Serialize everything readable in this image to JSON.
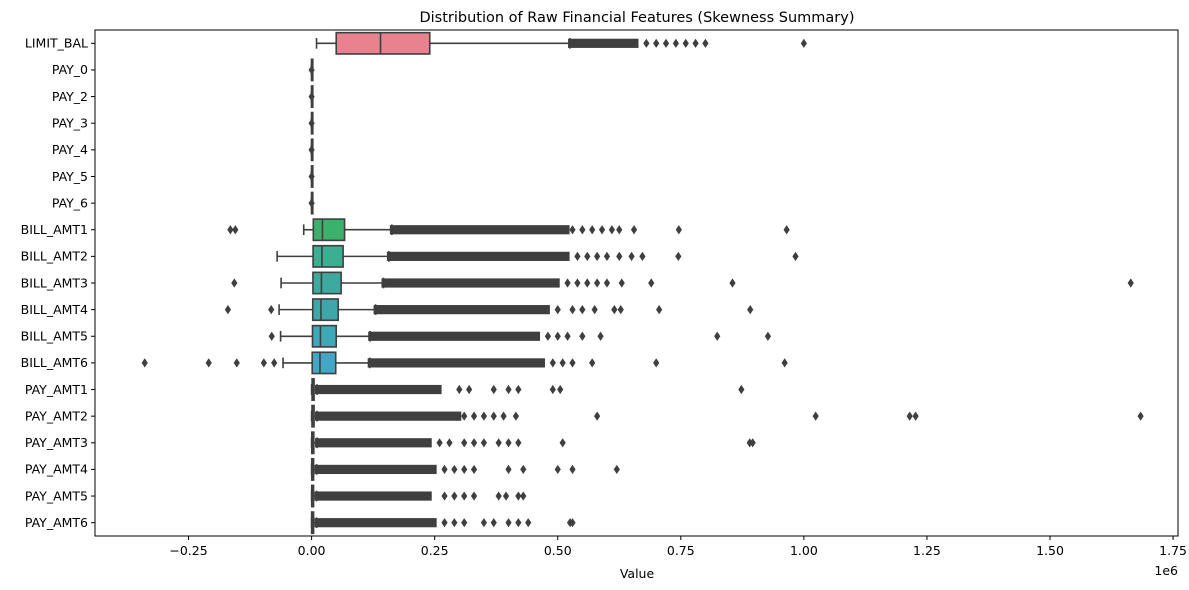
{
  "chart_data": {
    "type": "boxplot",
    "orientation": "horizontal",
    "title": "Distribution of Raw Financial Features (Skewness Summary)",
    "xlabel": "Value",
    "ylabel": "",
    "offset_label": "1e6",
    "xlim": [
      -0.44,
      1.76
    ],
    "xticks": [
      -0.25,
      0.0,
      0.25,
      0.5,
      0.75,
      1.0,
      1.25,
      1.5,
      1.75
    ],
    "xtick_labels": [
      "−0.25",
      "0.00",
      "0.25",
      "0.50",
      "0.75",
      "1.00",
      "1.25",
      "1.50",
      "1.75"
    ],
    "grid": false,
    "legend": false,
    "box_edge_color": "#3f3f3f",
    "categories": [
      "LIMIT_BAL",
      "PAY_0",
      "PAY_2",
      "PAY_3",
      "PAY_4",
      "PAY_5",
      "PAY_6",
      "BILL_AMT1",
      "BILL_AMT2",
      "BILL_AMT3",
      "BILL_AMT4",
      "BILL_AMT5",
      "BILL_AMT6",
      "PAY_AMT1",
      "PAY_AMT2",
      "PAY_AMT3",
      "PAY_AMT4",
      "PAY_AMT5",
      "PAY_AMT6"
    ],
    "series": [
      {
        "name": "LIMIT_BAL",
        "color": "#e8828f",
        "wlo": 0.01,
        "q1": 0.05,
        "med": 0.14,
        "q3": 0.24,
        "whi": 0.525,
        "dense": [
          0.525,
          0.66
        ],
        "outliers": [
          0.68,
          0.7,
          0.72,
          0.74,
          0.76,
          0.78,
          0.8,
          1.0
        ]
      },
      {
        "name": "PAY_0",
        "color": "#dc8c5a",
        "wlo": -2e-06,
        "q1": -1e-06,
        "med": 0.0,
        "q3": 0.0,
        "whi": 2e-06,
        "dense": [
          -8e-06,
          8e-06
        ],
        "outliers": []
      },
      {
        "name": "PAY_2",
        "color": "#c29a3c",
        "wlo": -2e-06,
        "q1": -1e-06,
        "med": 0.0,
        "q3": 0.0,
        "whi": 2e-06,
        "dense": [
          -8e-06,
          8e-06
        ],
        "outliers": []
      },
      {
        "name": "PAY_3",
        "color": "#a9a23a",
        "wlo": -2e-06,
        "q1": -1e-06,
        "med": 0.0,
        "q3": 0.0,
        "whi": 2e-06,
        "dense": [
          -8e-06,
          8e-06
        ],
        "outliers": []
      },
      {
        "name": "PAY_4",
        "color": "#8ea93a",
        "wlo": -2e-06,
        "q1": -1e-06,
        "med": 0.0,
        "q3": 0.0,
        "whi": 2e-06,
        "dense": [
          -8e-06,
          8e-06
        ],
        "outliers": []
      },
      {
        "name": "PAY_5",
        "color": "#5faf3e",
        "wlo": -2e-06,
        "q1": -1e-06,
        "med": 0.0,
        "q3": 0.0,
        "whi": 2e-06,
        "dense": [
          -8e-06,
          8e-06
        ],
        "outliers": []
      },
      {
        "name": "PAY_6",
        "color": "#38ae62",
        "wlo": -2e-06,
        "q1": -1e-06,
        "med": 0.0,
        "q3": 0.0,
        "whi": 2e-06,
        "dense": [
          -8e-06,
          8e-06
        ],
        "outliers": []
      },
      {
        "name": "BILL_AMT1",
        "color": "#3bb26c",
        "wlo": -0.016,
        "q1": 0.0035,
        "med": 0.022,
        "q3": 0.067,
        "whi": 0.163,
        "dense": [
          0.163,
          0.52
        ],
        "outliers": [
          -0.165,
          -0.155,
          0.53,
          0.55,
          0.57,
          0.59,
          0.61,
          0.625,
          0.655,
          0.746,
          0.965
        ]
      },
      {
        "name": "BILL_AMT2",
        "color": "#3cae92",
        "wlo": -0.07,
        "q1": 0.003,
        "med": 0.021,
        "q3": 0.064,
        "whi": 0.157,
        "dense": [
          0.157,
          0.52
        ],
        "outliers": [
          0.54,
          0.56,
          0.58,
          0.6,
          0.625,
          0.65,
          0.672,
          0.745,
          0.983
        ]
      },
      {
        "name": "BILL_AMT3",
        "color": "#3cab9e",
        "wlo": -0.062,
        "q1": 0.0027,
        "med": 0.02,
        "q3": 0.06,
        "whi": 0.146,
        "dense": [
          0.146,
          0.5
        ],
        "outliers": [
          -0.157,
          0.52,
          0.54,
          0.56,
          0.58,
          0.6,
          0.63,
          0.69,
          0.855,
          1.664
        ]
      },
      {
        "name": "BILL_AMT4",
        "color": "#3da8aa",
        "wlo": -0.066,
        "q1": 0.0023,
        "med": 0.019,
        "q3": 0.054,
        "whi": 0.13,
        "dense": [
          0.13,
          0.48
        ],
        "outliers": [
          -0.17,
          -0.082,
          0.5,
          0.53,
          0.55,
          0.575,
          0.615,
          0.628,
          0.706,
          0.891
        ]
      },
      {
        "name": "BILL_AMT5",
        "color": "#3ea8b6",
        "wlo": -0.063,
        "q1": 0.0018,
        "med": 0.018,
        "q3": 0.05,
        "whi": 0.119,
        "dense": [
          0.119,
          0.46
        ],
        "outliers": [
          -0.081,
          0.48,
          0.5,
          0.52,
          0.55,
          0.587,
          0.824,
          0.927
        ]
      },
      {
        "name": "BILL_AMT6",
        "color": "#42a6c4",
        "wlo": -0.058,
        "q1": 0.0012,
        "med": 0.017,
        "q3": 0.049,
        "whi": 0.118,
        "dense": [
          0.118,
          0.47
        ],
        "outliers": [
          -0.339,
          -0.209,
          -0.152,
          -0.097,
          -0.076,
          0.49,
          0.51,
          0.53,
          0.57,
          0.7,
          0.961
        ]
      },
      {
        "name": "PAY_AMT1",
        "color": "#4c9ed6",
        "wlo": 0.0,
        "q1": 0.001,
        "med": 0.0021,
        "q3": 0.005,
        "whi": 0.011,
        "dense": [
          0.011,
          0.26
        ],
        "outliers": [
          0.3,
          0.32,
          0.37,
          0.4,
          0.42,
          0.49,
          0.505,
          0.873
        ]
      },
      {
        "name": "PAY_AMT2",
        "color": "#7a8fe0",
        "wlo": 0.0,
        "q1": 0.0008,
        "med": 0.002,
        "q3": 0.005,
        "whi": 0.011,
        "dense": [
          0.011,
          0.3
        ],
        "outliers": [
          0.31,
          0.33,
          0.35,
          0.37,
          0.39,
          0.415,
          0.58,
          1.024,
          1.215,
          1.227,
          1.684
        ]
      },
      {
        "name": "PAY_AMT3",
        "color": "#a387e6",
        "wlo": 0.0,
        "q1": 0.0004,
        "med": 0.0018,
        "q3": 0.0045,
        "whi": 0.011,
        "dense": [
          0.011,
          0.24
        ],
        "outliers": [
          0.26,
          0.28,
          0.31,
          0.33,
          0.35,
          0.38,
          0.4,
          0.42,
          0.51,
          0.89,
          0.896
        ]
      },
      {
        "name": "PAY_AMT4",
        "color": "#c67fe4",
        "wlo": 0.0,
        "q1": 0.0003,
        "med": 0.0015,
        "q3": 0.004,
        "whi": 0.01,
        "dense": [
          0.01,
          0.25
        ],
        "outliers": [
          0.27,
          0.29,
          0.31,
          0.33,
          0.4,
          0.43,
          0.5,
          0.53,
          0.62
        ]
      },
      {
        "name": "PAY_AMT5",
        "color": "#dd7fd0",
        "wlo": 0.0,
        "q1": 0.0002,
        "med": 0.0015,
        "q3": 0.004,
        "whi": 0.01,
        "dense": [
          0.01,
          0.24
        ],
        "outliers": [
          0.27,
          0.29,
          0.31,
          0.33,
          0.38,
          0.395,
          0.42,
          0.43
        ]
      },
      {
        "name": "PAY_AMT6",
        "color": "#e684b4",
        "wlo": 0.0,
        "q1": 0.0001,
        "med": 0.0015,
        "q3": 0.004,
        "whi": 0.01,
        "dense": [
          0.01,
          0.25
        ],
        "outliers": [
          0.27,
          0.29,
          0.31,
          0.35,
          0.37,
          0.4,
          0.42,
          0.44,
          0.525,
          0.53
        ]
      }
    ]
  }
}
